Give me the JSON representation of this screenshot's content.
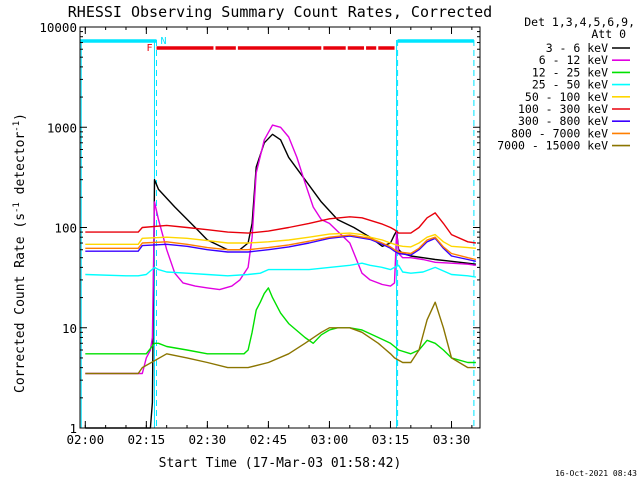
{
  "chart_data": {
    "type": "line",
    "title": "RHESSI Observing Summary Count Rates, Corrected",
    "xlabel": "Start Time (17-Mar-03 01:58:42)",
    "ylabel": "Corrected Count Rate (s⁻¹ detector⁻¹)",
    "ylabel_parts": {
      "a": "Corrected Count Rate (s",
      "sup1": "-1",
      "b": " detector",
      "sup2": "-1",
      "c": ")"
    },
    "y_scale": "log",
    "ylim": [
      1,
      10000
    ],
    "xlim": [
      "01:58:42",
      "03:37:00"
    ],
    "x_ticks": [
      "02:00",
      "02:15",
      "02:30",
      "02:45",
      "03:00",
      "03:15",
      "03:30"
    ],
    "y_ticks": [
      "1",
      "10",
      "100",
      "1000",
      "10000"
    ],
    "footer_date": "16-Oct-2021 08:43",
    "legend_placement": "right",
    "legend_header": [
      "Det 1,3,4,5,6,9,",
      "Att 0"
    ],
    "status_labels": {
      "f": "F",
      "n": "N"
    },
    "status_bars": [
      {
        "name": "N",
        "color": "#00e5ff",
        "x_ranges": [
          [
            "01:58:42",
            "02:17:30"
          ],
          [
            "03:16:45",
            "03:35:30"
          ]
        ]
      },
      {
        "name": "F",
        "color": "#e8000b",
        "x_ranges": [
          [
            "02:17:30",
            "02:31:30"
          ],
          [
            "02:32:00",
            "02:37:00"
          ],
          [
            "02:37:30",
            "02:58:00"
          ],
          [
            "02:58:30",
            "03:04:00"
          ],
          [
            "03:04:30",
            "03:08:30"
          ],
          [
            "03:09:00",
            "03:11:30"
          ],
          [
            "03:12:00",
            "03:16:00"
          ]
        ]
      }
    ],
    "vertical_markers": [
      {
        "style": "solid",
        "color": "#00e5ff",
        "x": [
          "01:59:00",
          "02:17:00",
          "03:16:30"
        ]
      },
      {
        "style": "dashed",
        "color": "#00e5ff",
        "x": [
          "02:17:30",
          "03:16:45",
          "03:35:30"
        ]
      }
    ],
    "series": [
      {
        "name": "3 - 6 keV",
        "color": "#000000",
        "times": [
          "02:00",
          "02:13",
          "02:15",
          "02:16",
          "02:16:30",
          "02:17",
          "02:18",
          "02:22",
          "02:27",
          "02:30",
          "02:35",
          "02:38",
          "02:40",
          "02:41",
          "02:42",
          "02:44",
          "02:46",
          "02:48",
          "02:50",
          "02:54",
          "02:58",
          "03:02",
          "03:06",
          "03:10",
          "03:13",
          "03:15",
          "03:16",
          "03:16:30",
          "03:17",
          "03:18",
          "03:20",
          "03:23",
          "03:26",
          "03:30",
          "03:34",
          "03:36"
        ],
        "values": [
          1,
          1,
          1,
          1,
          1.8,
          300,
          240,
          160,
          100,
          75,
          60,
          60,
          70,
          110,
          400,
          700,
          850,
          750,
          500,
          300,
          180,
          120,
          100,
          80,
          65,
          70,
          85,
          92,
          60,
          55,
          52,
          50,
          48,
          46,
          44,
          43
        ]
      },
      {
        "name": "6 - 12 keV",
        "color": "#e100e1",
        "times": [
          "02:00",
          "02:13",
          "02:14",
          "02:15",
          "02:16",
          "02:16:30",
          "02:17",
          "02:18",
          "02:20",
          "02:22",
          "02:24",
          "02:27",
          "02:30",
          "02:33",
          "02:36",
          "02:38",
          "02:40",
          "02:41",
          "02:42",
          "02:44",
          "02:46",
          "02:48",
          "02:50",
          "02:52",
          "02:54",
          "02:56",
          "02:58",
          "03:00",
          "03:05",
          "03:08",
          "03:10",
          "03:13",
          "03:15",
          "03:16",
          "03:16:30",
          "03:17",
          "03:18",
          "03:20",
          "03:23",
          "03:26",
          "03:30",
          "03:34",
          "03:36"
        ],
        "values": [
          3.5,
          3.5,
          3.5,
          5,
          6,
          8,
          180,
          120,
          60,
          35,
          28,
          26,
          25,
          24,
          26,
          30,
          40,
          80,
          350,
          750,
          1050,
          1000,
          800,
          500,
          280,
          160,
          120,
          110,
          70,
          35,
          30,
          27,
          26,
          28,
          90,
          55,
          50,
          50,
          48,
          45,
          44,
          43,
          42
        ]
      },
      {
        "name": "12 - 25 keV",
        "color": "#00e100",
        "times": [
          "02:00",
          "02:10",
          "02:15",
          "02:17",
          "02:18",
          "02:20",
          "02:25",
          "02:30",
          "02:35",
          "02:39",
          "02:40",
          "02:41",
          "02:42",
          "02:43",
          "02:44",
          "02:45",
          "02:46",
          "02:48",
          "02:50",
          "02:54",
          "02:56",
          "02:58",
          "03:00",
          "03:02",
          "03:05",
          "03:08",
          "03:12",
          "03:15",
          "03:16",
          "03:17",
          "03:20",
          "03:22",
          "03:24",
          "03:26",
          "03:28",
          "03:30",
          "03:34",
          "03:36"
        ],
        "values": [
          5.5,
          5.5,
          5.5,
          7,
          7,
          6.5,
          6,
          5.5,
          5.5,
          5.5,
          6,
          9,
          15,
          18,
          22,
          25,
          20,
          14,
          11,
          8,
          7,
          8.5,
          9.5,
          10,
          10,
          9.5,
          8,
          7,
          6.5,
          6,
          5.5,
          6,
          7.5,
          7,
          6,
          5,
          4.5,
          4.5
        ]
      },
      {
        "name": "25 - 50 keV",
        "color": "#00ffff",
        "times": [
          "02:00",
          "02:10",
          "02:13",
          "02:15",
          "02:17",
          "02:18",
          "02:20",
          "02:25",
          "02:30",
          "02:35",
          "02:40",
          "02:43",
          "02:45",
          "02:50",
          "02:55",
          "03:00",
          "03:05",
          "03:08",
          "03:10",
          "03:13",
          "03:15",
          "03:16",
          "03:17",
          "03:18",
          "03:20",
          "03:23",
          "03:26",
          "03:30",
          "03:34",
          "03:36"
        ],
        "values": [
          34,
          33,
          33,
          34,
          40,
          38,
          36,
          35,
          34,
          33,
          34,
          35,
          38,
          38,
          38,
          40,
          42,
          44,
          42,
          40,
          38,
          40,
          42,
          36,
          35,
          36,
          40,
          34,
          33,
          32
        ]
      },
      {
        "name": "50 - 100 keV",
        "color": "#ffd700",
        "times": [
          "02:00",
          "02:10",
          "02:13",
          "02:14",
          "02:20",
          "02:25",
          "02:30",
          "02:35",
          "02:40",
          "02:45",
          "02:50",
          "02:55",
          "03:00",
          "03:05",
          "03:08",
          "03:10",
          "03:13",
          "03:15",
          "03:16",
          "03:17",
          "03:18",
          "03:20",
          "03:22",
          "03:24",
          "03:26",
          "03:28",
          "03:30",
          "03:34",
          "03:36"
        ],
        "values": [
          68,
          68,
          68,
          78,
          80,
          78,
          74,
          70,
          70,
          72,
          75,
          80,
          86,
          88,
          85,
          80,
          75,
          70,
          68,
          66,
          65,
          64,
          70,
          80,
          85,
          72,
          65,
          63,
          62
        ]
      },
      {
        "name": "100 - 300 keV",
        "color": "#e8000b",
        "times": [
          "02:00",
          "02:10",
          "02:13",
          "02:14",
          "02:20",
          "02:25",
          "02:30",
          "02:35",
          "02:40",
          "02:45",
          "02:50",
          "02:55",
          "03:00",
          "03:05",
          "03:08",
          "03:10",
          "03:13",
          "03:15",
          "03:16",
          "03:17",
          "03:20",
          "03:22",
          "03:24",
          "03:26",
          "03:28",
          "03:30",
          "03:34",
          "03:36"
        ],
        "values": [
          90,
          90,
          90,
          100,
          105,
          100,
          95,
          90,
          88,
          92,
          100,
          110,
          122,
          128,
          125,
          118,
          108,
          100,
          95,
          88,
          88,
          100,
          125,
          140,
          110,
          85,
          72,
          70
        ]
      },
      {
        "name": "300 - 800 keV",
        "color": "#3a00ff",
        "times": [
          "02:00",
          "02:10",
          "02:13",
          "02:14",
          "02:20",
          "02:25",
          "02:30",
          "02:35",
          "02:40",
          "02:45",
          "02:50",
          "02:55",
          "03:00",
          "03:05",
          "03:10",
          "03:13",
          "03:15",
          "03:16",
          "03:17",
          "03:20",
          "03:22",
          "03:24",
          "03:26",
          "03:28",
          "03:30",
          "03:34",
          "03:36"
        ],
        "values": [
          58,
          58,
          58,
          66,
          68,
          65,
          60,
          57,
          57,
          60,
          64,
          70,
          78,
          82,
          76,
          68,
          62,
          58,
          55,
          53,
          60,
          72,
          78,
          62,
          52,
          48,
          46
        ]
      },
      {
        "name": "800 - 7000 keV",
        "color": "#ff7f00",
        "times": [
          "02:00",
          "02:10",
          "02:13",
          "02:14",
          "02:20",
          "02:25",
          "02:30",
          "02:35",
          "02:40",
          "02:45",
          "02:50",
          "02:55",
          "03:00",
          "03:05",
          "03:10",
          "03:13",
          "03:15",
          "03:16",
          "03:17",
          "03:20",
          "03:22",
          "03:24",
          "03:26",
          "03:28",
          "03:30",
          "03:34",
          "03:36"
        ],
        "values": [
          62,
          62,
          62,
          70,
          72,
          68,
          63,
          60,
          60,
          63,
          67,
          73,
          80,
          84,
          78,
          70,
          64,
          60,
          57,
          55,
          62,
          75,
          80,
          64,
          55,
          50,
          48
        ]
      },
      {
        "name": "7000 - 15000 keV",
        "color": "#8b7500",
        "times": [
          "02:00",
          "02:10",
          "02:13",
          "02:14",
          "02:20",
          "02:25",
          "02:30",
          "02:35",
          "02:40",
          "02:45",
          "02:50",
          "02:54",
          "02:58",
          "03:00",
          "03:05",
          "03:08",
          "03:12",
          "03:15",
          "03:16",
          "03:18",
          "03:20",
          "03:22",
          "03:24",
          "03:26",
          "03:28",
          "03:30",
          "03:34",
          "03:36"
        ],
        "values": [
          3.5,
          3.5,
          3.5,
          4,
          5.5,
          5,
          4.5,
          4,
          4,
          4.5,
          5.5,
          7,
          9,
          10,
          10,
          9,
          7,
          5.5,
          5,
          4.5,
          4.5,
          6,
          12,
          18,
          10,
          5,
          4,
          4
        ]
      }
    ]
  }
}
